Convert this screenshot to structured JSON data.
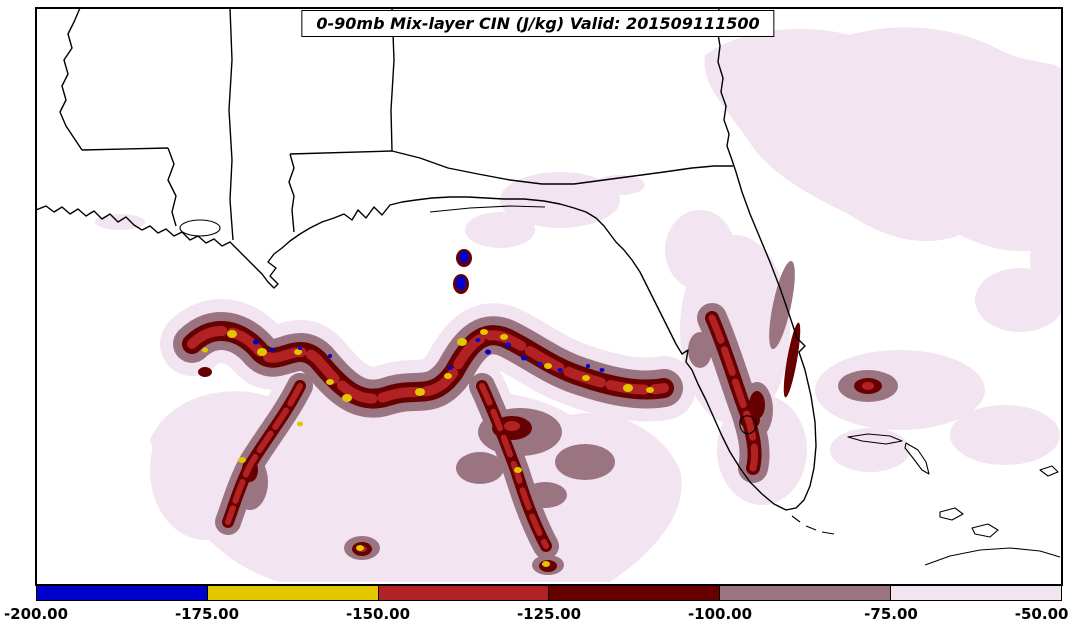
{
  "figure": {
    "title": "0-90mb Mix-layer CIN (J/kg) Valid: 201509111500"
  },
  "chart_data": {
    "type": "heatmap",
    "title": "0-90mb Mix-layer CIN (J/kg) Valid: 201509111500",
    "variable": "0-90mb Mix-layer CIN",
    "units": "J/kg",
    "valid_time": "201509111500",
    "legend_position": "bottom",
    "grid": false,
    "colorbar": {
      "orientation": "horizontal",
      "ticks": [
        "-200.00",
        "-175.00",
        "-150.00",
        "-125.00",
        "-100.00",
        "-75.00",
        "-50.00"
      ],
      "levels": [
        -200,
        -175,
        -150,
        -125,
        -100,
        -75,
        -50
      ],
      "colors": [
        "#0000cd",
        "#e3c500",
        "#b22222",
        "#670000",
        "#9b7482",
        "#f2e4f0"
      ],
      "bin_ranges": [
        {
          "from": -200,
          "to": -175,
          "color": "#0000cd"
        },
        {
          "from": -175,
          "to": -150,
          "color": "#e3c500"
        },
        {
          "from": -150,
          "to": -125,
          "color": "#b22222"
        },
        {
          "from": -125,
          "to": -100,
          "color": "#670000"
        },
        {
          "from": -100,
          "to": -75,
          "color": "#9b7482"
        },
        {
          "from": -75,
          "to": -50,
          "color": "#f2e4f0"
        }
      ]
    }
  }
}
